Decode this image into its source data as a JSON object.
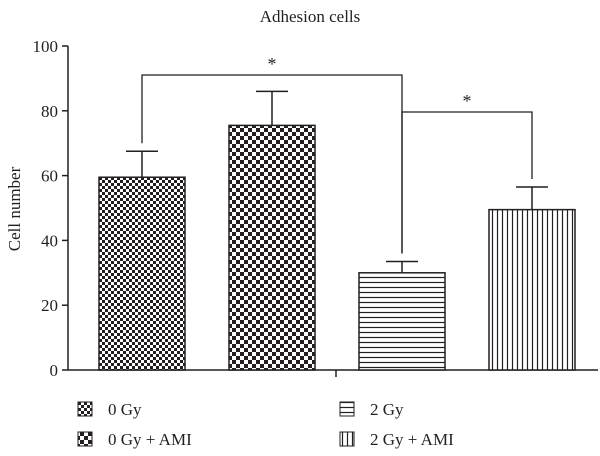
{
  "chart_data": {
    "type": "bar",
    "title": "Adhesion cells",
    "xlabel": "",
    "ylabel": "Cell number",
    "ylim": [
      0,
      100
    ],
    "yticks": [
      0,
      20,
      40,
      60,
      80,
      100
    ],
    "grid": false,
    "legend_position": "bottom",
    "categories": [
      "0 Gy",
      "0 Gy + AMI",
      "2 Gy",
      "2 Gy + AMI"
    ],
    "values": [
      59.5,
      75.5,
      30,
      49.5
    ],
    "errors": [
      8,
      10.5,
      3.5,
      7
    ],
    "patterns": [
      "small-checker",
      "large-checker",
      "horizontal-lines",
      "vertical-lines"
    ],
    "significance": [
      {
        "from": 0,
        "to": 2,
        "label": "*"
      },
      {
        "from": 2,
        "to": 3,
        "label": "*"
      }
    ],
    "colors": {
      "ink": "#231f20",
      "background": "#ffffff"
    }
  }
}
